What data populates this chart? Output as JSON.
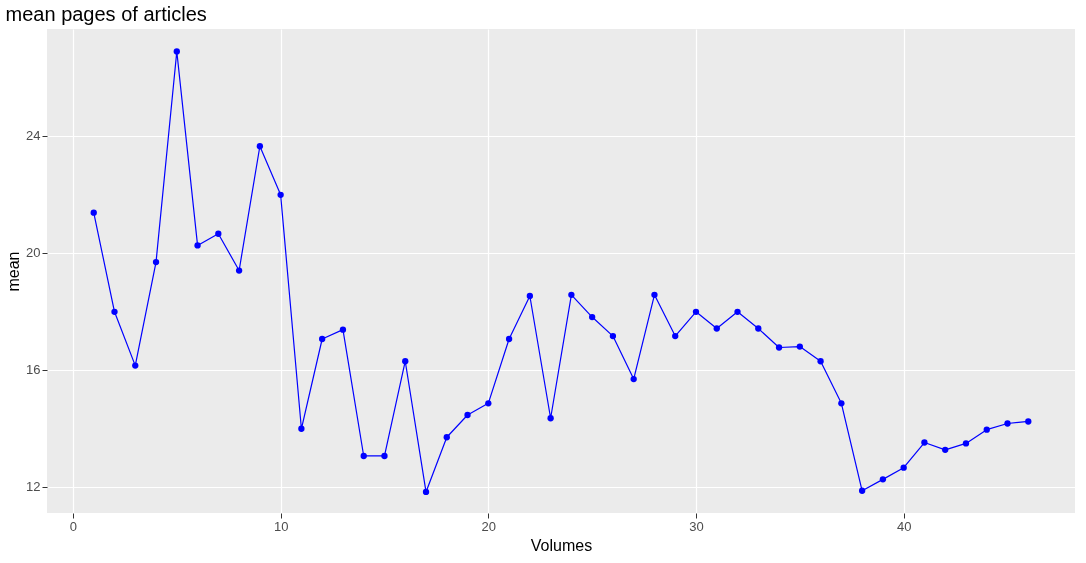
{
  "chart_data": {
    "type": "line",
    "title": "mean pages of articles",
    "xlabel": "Volumes",
    "ylabel": "mean",
    "x": [
      1,
      2,
      3,
      4,
      5,
      6,
      7,
      8,
      9,
      10,
      11,
      12,
      13,
      14,
      15,
      16,
      17,
      18,
      19,
      20,
      21,
      22,
      23,
      24,
      25,
      26,
      27,
      28,
      29,
      30,
      31,
      32,
      33,
      34,
      35,
      36,
      37,
      38,
      39,
      40,
      41,
      42,
      43,
      44,
      45,
      46
    ],
    "series": [
      {
        "color": "#0000ff",
        "values": [
          21.37,
          17.98,
          16.14,
          19.68,
          26.88,
          20.25,
          20.65,
          19.39,
          23.64,
          21.98,
          13.98,
          17.05,
          17.37,
          13.05,
          13.05,
          16.29,
          11.82,
          13.69,
          14.45,
          14.85,
          17.05,
          18.52,
          14.34,
          18.56,
          17.8,
          17.15,
          15.68,
          18.56,
          17.15,
          17.98,
          17.41,
          17.98,
          17.41,
          16.76,
          16.79,
          16.29,
          14.85,
          11.86,
          12.25,
          12.65,
          13.51,
          13.26,
          13.48,
          13.95,
          14.16,
          14.23
        ]
      }
    ],
    "xlim": [
      -1.25,
      48.25
    ],
    "xticks": [
      0,
      10,
      20,
      30,
      40
    ],
    "ylim": [
      11.1,
      27.65
    ],
    "yticks": [
      12,
      16,
      20,
      24
    ],
    "grid": true,
    "marker": "circle",
    "line_style": "solid"
  }
}
